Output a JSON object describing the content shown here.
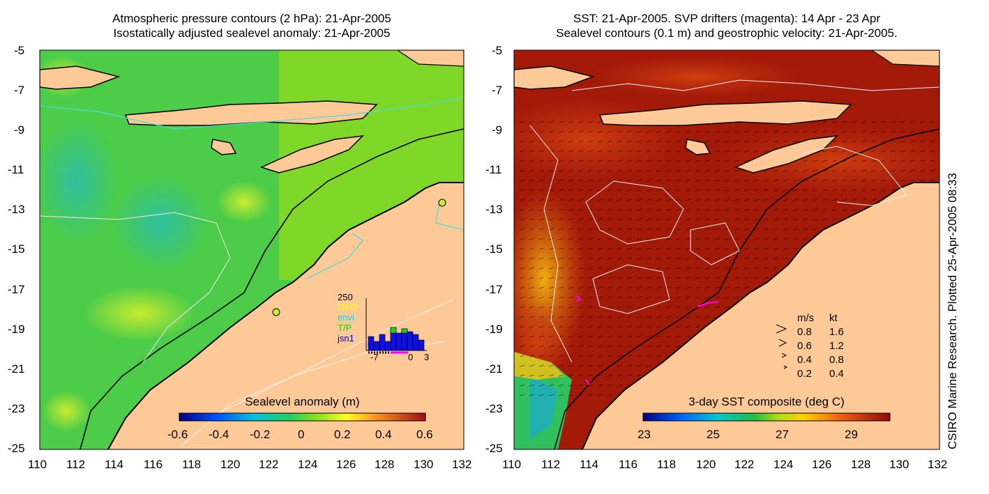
{
  "left_panel": {
    "title_line1": "Atmospheric pressure contours (2 hPa): 21-Apr-2005",
    "title_line2": "Isostatically adjusted sealevel anomaly: 21-Apr-2005",
    "colorbar_label": "Sealevel anomaly (m)",
    "colorbar_ticks": [
      "-0.6",
      "-0.4",
      "-0.2",
      "0",
      "0.2",
      "0.4",
      "0.6"
    ],
    "inset": {
      "ymax_label": "250",
      "legend": [
        {
          "name": "GFO",
          "color": "#ffff00"
        },
        {
          "name": "envi",
          "color": "#00e0e0"
        },
        {
          "name": "T/P",
          "color": "#00e000"
        },
        {
          "name": "jsn1",
          "color": "#0000cc"
        }
      ],
      "x_ticks": [
        "-7",
        "0",
        "3"
      ]
    }
  },
  "right_panel": {
    "title_line1": "SST: 21-Apr-2005. SVP drifters (magenta): 14 Apr - 23 Apr",
    "title_line2": "Sealevel contours (0.1 m) and geostrophic velocity: 21-Apr-2005.",
    "colorbar_label": "3-day SST composite (deg C)",
    "colorbar_ticks": [
      "23",
      "25",
      "27",
      "29"
    ],
    "velocity_legend": {
      "header_ms": "m/s",
      "header_kt": "kt",
      "rows": [
        {
          "ms": "0.8",
          "kt": "1.6"
        },
        {
          "ms": "0.6",
          "kt": "1.2"
        },
        {
          "ms": "0.4",
          "kt": "0.8"
        },
        {
          "ms": "0.2",
          "kt": "0.4"
        }
      ]
    }
  },
  "axes": {
    "x_ticks": [
      "110",
      "112",
      "114",
      "116",
      "118",
      "120",
      "122",
      "124",
      "126",
      "128",
      "130",
      "132"
    ],
    "y_ticks": [
      "-5",
      "-7",
      "-9",
      "-11",
      "-13",
      "-15",
      "-17",
      "-19",
      "-21",
      "-23",
      "-25"
    ]
  },
  "credit": "CSIRO Marine Research. Plotted 25-Apr-2005 08:33",
  "colors": {
    "land": "#fdc996",
    "sla_main": "#3ecf3e",
    "sst_main": "#a01808",
    "coast": "#000000"
  }
}
